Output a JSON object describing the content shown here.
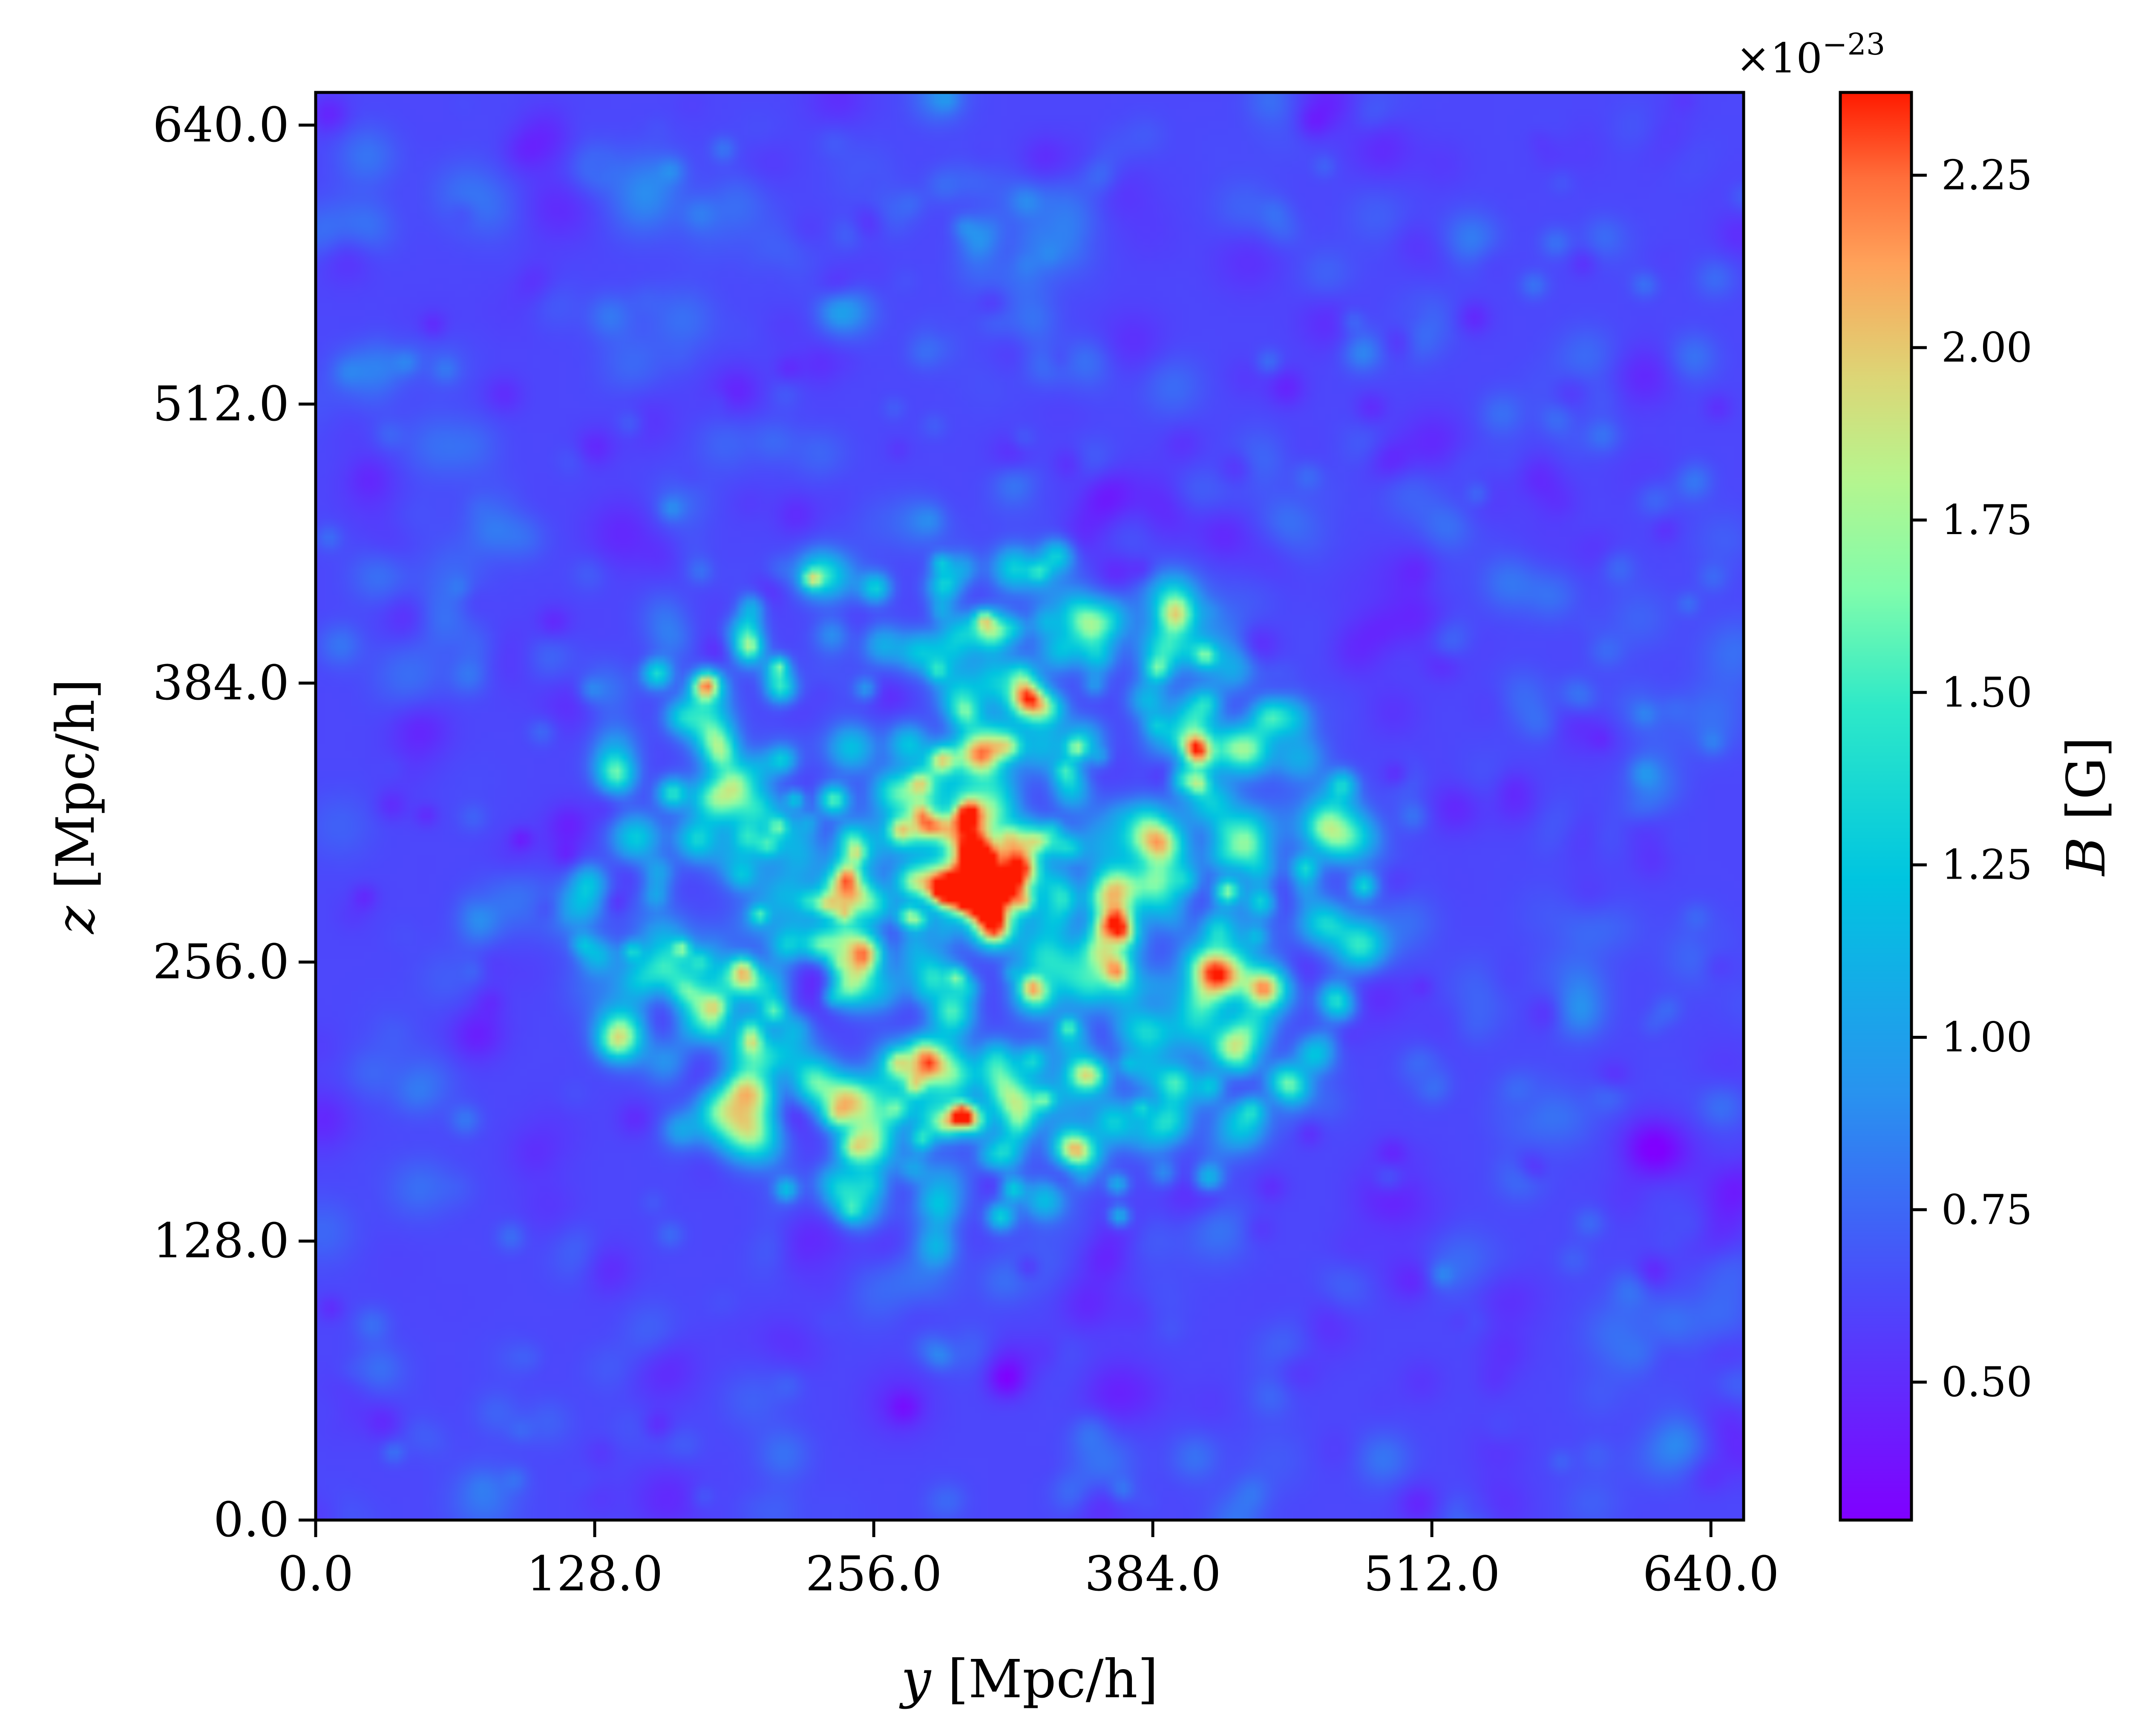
{
  "chart_data": {
    "type": "heatmap",
    "title": "",
    "xlabel_var": "y",
    "ylabel_var": "z",
    "unit": "[Mpc/h]",
    "xlim": [
      0,
      655
    ],
    "ylim": [
      0,
      655
    ],
    "x_ticks": [
      "0.0",
      "128.0",
      "256.0",
      "384.0",
      "512.0",
      "640.0"
    ],
    "y_ticks": [
      "0.0",
      "128.0",
      "256.0",
      "384.0",
      "512.0",
      "640.0"
    ],
    "x_tick_values": [
      0,
      128,
      256,
      384,
      512,
      640
    ],
    "y_tick_values": [
      0,
      128,
      256,
      384,
      512,
      640
    ],
    "colormap": "rainbow",
    "colorbar": {
      "label_var": "B",
      "label_unit": "[G]",
      "range": [
        0.3,
        2.37
      ],
      "ticks": [
        "0.50",
        "0.75",
        "1.00",
        "1.25",
        "1.50",
        "1.75",
        "2.00",
        "2.25"
      ],
      "tick_values": [
        0.5,
        0.75,
        1.0,
        1.25,
        1.5,
        1.75,
        2.0,
        2.25
      ],
      "exponent_base": "×10",
      "exponent_power": "−23"
    },
    "field_description": "magnetic field strength map; background ~0.4–0.9, filamentary cluster centred near (y≈300, z≈300) Mpc/h with peaks up to ~2.3",
    "peaks": [
      {
        "y": 402,
        "z": 356,
        "value": 2.35
      },
      {
        "y": 236,
        "z": 332,
        "value": 2.15
      },
      {
        "y": 288,
        "z": 183,
        "value": 2.1
      },
      {
        "y": 162,
        "z": 335,
        "value": 1.95
      },
      {
        "y": 155,
        "z": 390,
        "value": 1.95
      },
      {
        "y": 212,
        "z": 383,
        "value": 1.9
      },
      {
        "y": 432,
        "z": 285,
        "value": 1.85
      },
      {
        "y": 280,
        "z": 210,
        "value": 1.8
      }
    ]
  }
}
